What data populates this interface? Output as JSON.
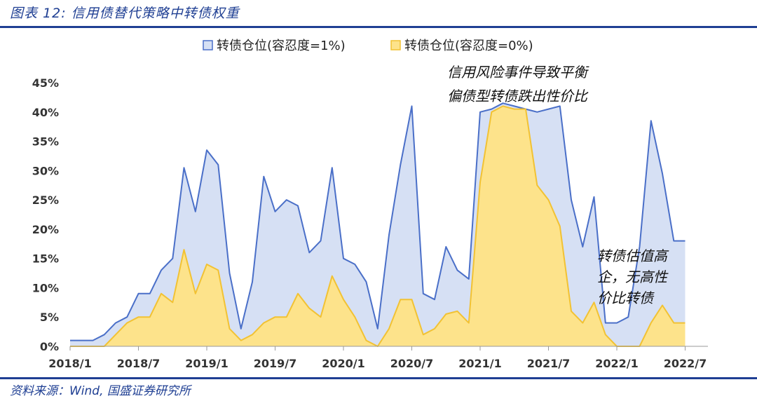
{
  "figure_title": "图表 12:  信用债替代策略中转债权重",
  "source": "资料来源：Wind, 国盛证券研究所",
  "chart_data": {
    "type": "area",
    "title": "",
    "xlabel": "",
    "ylabel": "",
    "ylim": [
      0,
      45
    ],
    "yticks": [
      "0%",
      "5%",
      "10%",
      "15%",
      "20%",
      "25%",
      "30%",
      "35%",
      "40%",
      "45%"
    ],
    "xlim": [
      "2018/1",
      "2022/9"
    ],
    "xticks": [
      "2018/1",
      "2018/7",
      "2019/1",
      "2019/7",
      "2020/1",
      "2020/7",
      "2021/1",
      "2021/7",
      "2022/1",
      "2022/7"
    ],
    "grid": false,
    "legend_position": "top",
    "colors": {
      "s1_fill": "#d6e0f4",
      "s1_line": "#4a6fc8",
      "s2_fill": "#fde38b",
      "s2_line": "#f2c233"
    },
    "series": [
      {
        "name": "转债仓位(容忍度=1%)",
        "points": [
          [
            "2018/1",
            1.0
          ],
          [
            "2018/3",
            1.0
          ],
          [
            "2018/4",
            2.0
          ],
          [
            "2018/5",
            4.0
          ],
          [
            "2018/6",
            5.0
          ],
          [
            "2018/7",
            9.0
          ],
          [
            "2018/8",
            9.0
          ],
          [
            "2018/9",
            13.0
          ],
          [
            "2018/10",
            15.0
          ],
          [
            "2018/11",
            30.5
          ],
          [
            "2018/12",
            23.0
          ],
          [
            "2019/1",
            33.5
          ],
          [
            "2019/2",
            31.0
          ],
          [
            "2019/3",
            12.5
          ],
          [
            "2019/4",
            3.0
          ],
          [
            "2019/5",
            11.0
          ],
          [
            "2019/6",
            29.0
          ],
          [
            "2019/7",
            23.0
          ],
          [
            "2019/8",
            25.0
          ],
          [
            "2019/9",
            24.0
          ],
          [
            "2019/10",
            16.0
          ],
          [
            "2019/11",
            18.0
          ],
          [
            "2019/12",
            30.5
          ],
          [
            "2020/1",
            15.0
          ],
          [
            "2020/2",
            14.0
          ],
          [
            "2020/3",
            11.0
          ],
          [
            "2020/4",
            3.0
          ],
          [
            "2020/5",
            19.0
          ],
          [
            "2020/6",
            31.0
          ],
          [
            "2020/7",
            41.0
          ],
          [
            "2020/8",
            9.0
          ],
          [
            "2020/9",
            8.0
          ],
          [
            "2020/10",
            17.0
          ],
          [
            "2020/11",
            13.0
          ],
          [
            "2020/12",
            11.5
          ],
          [
            "2021/1",
            40.0
          ],
          [
            "2021/2",
            40.5
          ],
          [
            "2021/3",
            41.5
          ],
          [
            "2021/4",
            41.0
          ],
          [
            "2021/5",
            40.5
          ],
          [
            "2021/6",
            40.0
          ],
          [
            "2021/7",
            40.5
          ],
          [
            "2021/8",
            41.0
          ],
          [
            "2021/9",
            25.0
          ],
          [
            "2021/10",
            17.0
          ],
          [
            "2021/11",
            25.5
          ],
          [
            "2021/12",
            4.0
          ],
          [
            "2022/1",
            4.0
          ],
          [
            "2022/2",
            5.0
          ],
          [
            "2022/3",
            17.0
          ],
          [
            "2022/4",
            38.5
          ],
          [
            "2022/5",
            29.5
          ],
          [
            "2022/6",
            18.0
          ],
          [
            "2022/7",
            18.0
          ]
        ]
      },
      {
        "name": "转债仓位(容忍度=0%)",
        "points": [
          [
            "2018/1",
            0
          ],
          [
            "2018/4",
            0
          ],
          [
            "2018/5",
            2.0
          ],
          [
            "2018/6",
            4.0
          ],
          [
            "2018/7",
            5.0
          ],
          [
            "2018/8",
            5.0
          ],
          [
            "2018/9",
            9.0
          ],
          [
            "2018/10",
            7.5
          ],
          [
            "2018/11",
            16.5
          ],
          [
            "2018/12",
            9.0
          ],
          [
            "2019/1",
            14.0
          ],
          [
            "2019/2",
            13.0
          ],
          [
            "2019/3",
            3.0
          ],
          [
            "2019/4",
            1.0
          ],
          [
            "2019/5",
            2.0
          ],
          [
            "2019/6",
            4.0
          ],
          [
            "2019/7",
            5.0
          ],
          [
            "2019/8",
            5.0
          ],
          [
            "2019/9",
            9.0
          ],
          [
            "2019/10",
            6.5
          ],
          [
            "2019/11",
            5.0
          ],
          [
            "2019/12",
            12.0
          ],
          [
            "2020/1",
            8.0
          ],
          [
            "2020/2",
            5.0
          ],
          [
            "2020/3",
            1.0
          ],
          [
            "2020/4",
            0
          ],
          [
            "2020/5",
            3.0
          ],
          [
            "2020/6",
            8.0
          ],
          [
            "2020/7",
            8.0
          ],
          [
            "2020/8",
            2.0
          ],
          [
            "2020/9",
            3.0
          ],
          [
            "2020/10",
            5.5
          ],
          [
            "2020/11",
            6.0
          ],
          [
            "2020/12",
            4.0
          ],
          [
            "2021/1",
            28.0
          ],
          [
            "2021/2",
            40.0
          ],
          [
            "2021/3",
            41.0
          ],
          [
            "2021/4",
            40.5
          ],
          [
            "2021/5",
            40.5
          ],
          [
            "2021/6",
            27.5
          ],
          [
            "2021/7",
            25.0
          ],
          [
            "2021/8",
            20.5
          ],
          [
            "2021/9",
            6.0
          ],
          [
            "2021/10",
            4.0
          ],
          [
            "2021/11",
            7.5
          ],
          [
            "2021/12",
            2.0
          ],
          [
            "2022/1",
            0
          ],
          [
            "2022/3",
            0
          ],
          [
            "2022/4",
            4.0
          ],
          [
            "2022/5",
            7.0
          ],
          [
            "2022/6",
            4.0
          ],
          [
            "2022/7",
            4.0
          ]
        ]
      }
    ],
    "annotations": [
      {
        "lines": [
          "信用风险事件导致平衡",
          "偏债型转债跌出性价比"
        ]
      },
      {
        "lines": [
          "转债估值高",
          "企，无高性",
          "价比转债"
        ]
      }
    ]
  }
}
